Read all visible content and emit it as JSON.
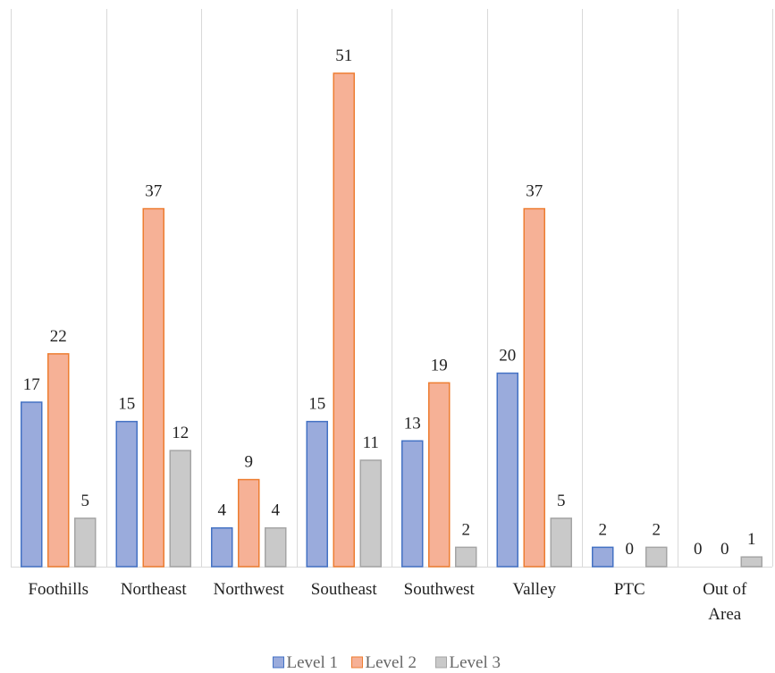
{
  "chart_data": {
    "type": "bar",
    "categories": [
      "Foothills",
      "Northeast",
      "Northwest",
      "Southeast",
      "Southwest",
      "Valley",
      "PTC",
      "Out of Area"
    ],
    "series": [
      {
        "name": "Level 1",
        "values": [
          17,
          15,
          4,
          15,
          13,
          20,
          2,
          0
        ],
        "fill": "#9aabdc",
        "stroke": "#4472c4"
      },
      {
        "name": "Level 2",
        "values": [
          22,
          37,
          9,
          51,
          19,
          37,
          0,
          0
        ],
        "fill": "#f6b196",
        "stroke": "#ed7d31"
      },
      {
        "name": "Level 3",
        "values": [
          5,
          12,
          4,
          11,
          2,
          5,
          2,
          1
        ],
        "fill": "#c9c9c9",
        "stroke": "#a5a5a5"
      }
    ],
    "ylim": [
      0,
      54
    ],
    "grid": "vertical-category-separators",
    "data_labels": true,
    "legend_position": "bottom"
  }
}
